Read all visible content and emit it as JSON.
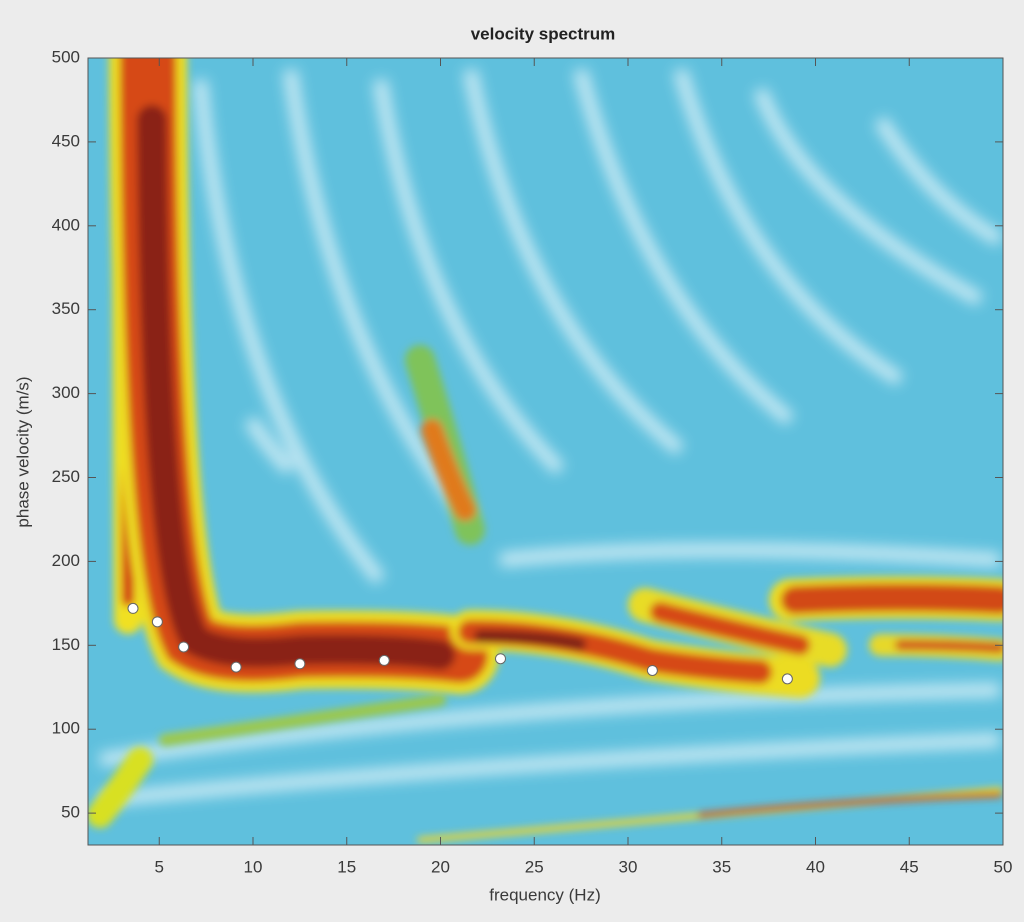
{
  "chart_data": {
    "type": "scatter",
    "title": "velocity spectrum",
    "x_label": "frequency (Hz)",
    "y_label": "phase velocity (m/s)",
    "x": [
      3.6,
      4.9,
      6.3,
      9.1,
      12.5,
      17,
      23.2,
      31.3,
      38.5
    ],
    "values": [
      172,
      164,
      149,
      137,
      139,
      141,
      142,
      135,
      130
    ],
    "color": "#ffffff",
    "xlim": [
      1.2,
      50
    ],
    "xticks": [
      5,
      10,
      15,
      20,
      25,
      30,
      35,
      40,
      45,
      50
    ],
    "ylim": [
      31,
      500
    ],
    "yticks": [
      50,
      100,
      150,
      200,
      250,
      300,
      350,
      400,
      450,
      500
    ]
  }
}
